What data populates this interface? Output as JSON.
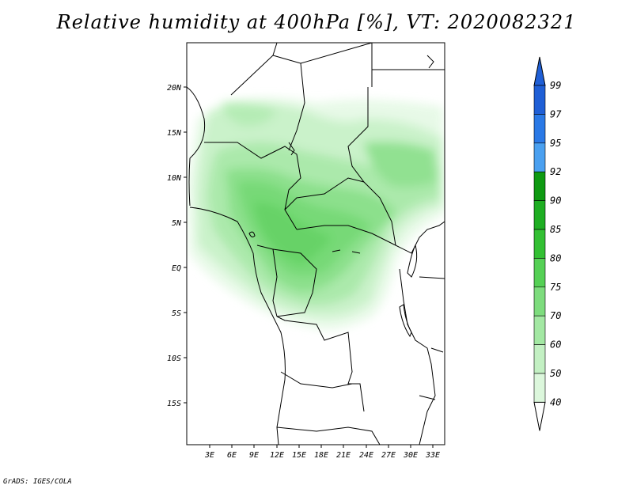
{
  "title": "Relative humidity at 400hPa [%], VT: 2020082321",
  "credit": "GrADS: IGES/COLA",
  "map": {
    "lat_labels": [
      "20N",
      "15N",
      "10N",
      "5N",
      "EQ",
      "5S",
      "10S",
      "15S"
    ],
    "lon_labels": [
      "3E",
      "6E",
      "9E",
      "12E",
      "15E",
      "18E",
      "21E",
      "24E",
      "27E",
      "30E",
      "33E"
    ]
  },
  "colorbar": {
    "labels": [
      "99",
      "97",
      "95",
      "92",
      "90",
      "85",
      "80",
      "75",
      "70",
      "60",
      "50",
      "40"
    ],
    "colors": [
      "#1f5fd6",
      "#2a79e6",
      "#4aa0f0",
      "#0e9a12",
      "#1eae22",
      "#33c033",
      "#55d055",
      "#7ddc7d",
      "#a3e8a3",
      "#c3f0c3",
      "#dcf7dc",
      "#f0fcf0"
    ],
    "arrow_top_color": "#1f5fd6",
    "arrow_bottom_color": "#ffffff"
  }
}
